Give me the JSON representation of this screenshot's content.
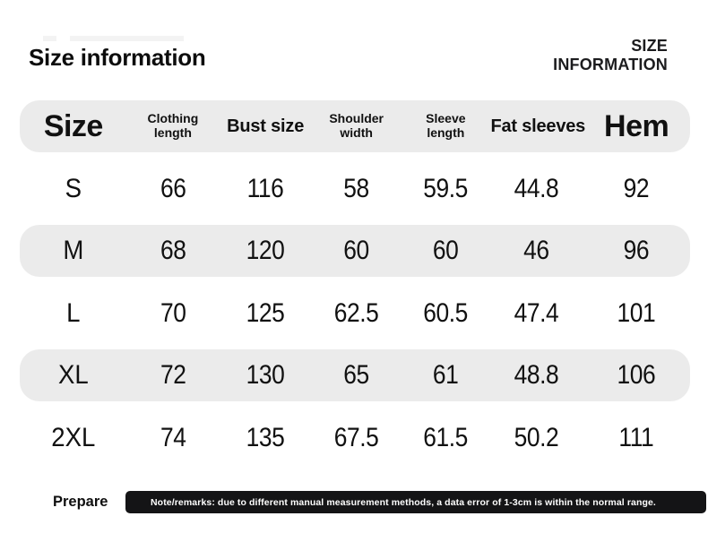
{
  "header": {
    "title": "Size information",
    "watermark_line1": "SIZE",
    "watermark_line2": "INFORMATION"
  },
  "table": {
    "columns": [
      {
        "label": "Size"
      },
      {
        "label": "Clothing\nlength"
      },
      {
        "label": "Bust size"
      },
      {
        "label": "Shoulder\nwidth"
      },
      {
        "label": "Sleeve\nlength"
      },
      {
        "label": "Fat sleeves"
      },
      {
        "label": "Hem"
      }
    ],
    "rows": [
      {
        "size": "S",
        "values": [
          "66",
          "116",
          "58",
          "59.5",
          "44.8",
          "92"
        ]
      },
      {
        "size": "M",
        "values": [
          "68",
          "120",
          "60",
          "60",
          "46",
          "96"
        ]
      },
      {
        "size": "L",
        "values": [
          "70",
          "125",
          "62.5",
          "60.5",
          "47.4",
          "101"
        ]
      },
      {
        "size": "XL",
        "values": [
          "72",
          "130",
          "65",
          "61",
          "48.8",
          "106"
        ]
      },
      {
        "size": "2XL",
        "values": [
          "74",
          "135",
          "67.5",
          "61.5",
          "50.2",
          "111"
        ]
      }
    ]
  },
  "footer": {
    "prepare_label": "Prepare",
    "note": "Note/remarks: due to different manual measurement methods, a data error of 1-3cm is within the normal range."
  },
  "colors": {
    "row_band": "#ebebeb",
    "note_bar_bg": "#141416",
    "note_text": "#ffffff",
    "text": "#111111",
    "background": "#ffffff"
  }
}
